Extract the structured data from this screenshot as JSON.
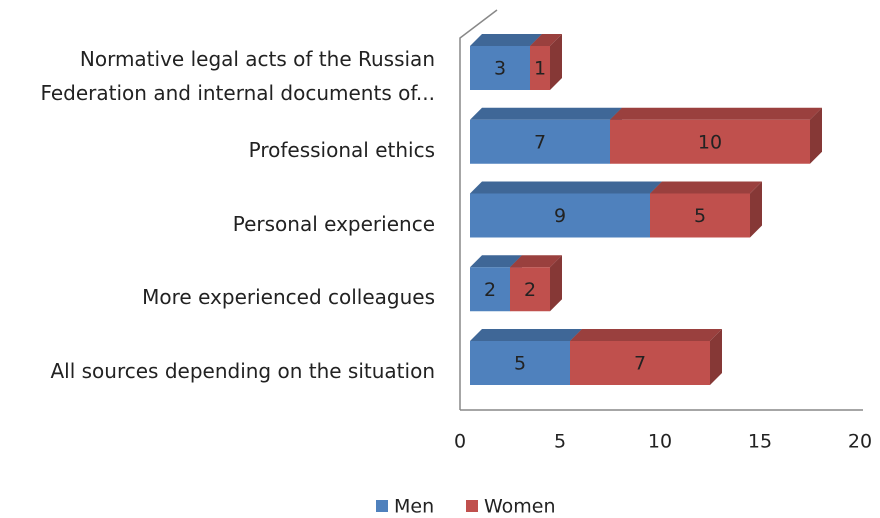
{
  "chart_data": {
    "type": "bar",
    "orientation": "horizontal",
    "stacked": true,
    "three_d": true,
    "categories": [
      "Normative legal acts of the Russian\nFederation and internal documents of...",
      "Professional ethics",
      "Personal experience",
      "More experienced colleagues",
      "All sources depending on the situation"
    ],
    "series": [
      {
        "name": "Men",
        "color": "#4f81bd",
        "values": [
          3,
          7,
          9,
          2,
          5
        ]
      },
      {
        "name": "Women",
        "color": "#c0504d",
        "values": [
          1,
          10,
          5,
          2,
          7
        ]
      }
    ],
    "xlim": [
      0,
      20
    ],
    "xticks": [
      0,
      5,
      10,
      15,
      20
    ],
    "grid": false,
    "legend": "bottom"
  }
}
